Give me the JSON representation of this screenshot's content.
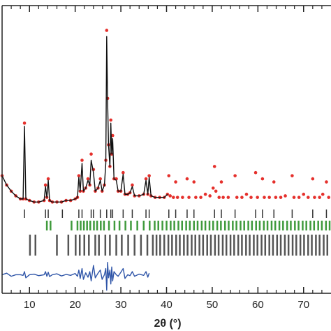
{
  "chart_data": {
    "type": "rietveld",
    "x_label": "2θ (°)",
    "xlim": [
      4,
      76
    ],
    "xticks": [
      10,
      20,
      30,
      40,
      50,
      60,
      70
    ],
    "xminorticks": [
      6,
      8,
      12,
      14,
      16,
      18,
      22,
      24,
      26,
      28,
      32,
      34,
      36,
      38,
      42,
      44,
      46,
      48,
      52,
      54,
      56,
      58,
      62,
      64,
      66,
      68,
      72,
      74
    ],
    "ylim": [
      7,
      100
    ],
    "x": [
      4,
      5,
      6,
      7,
      8,
      8.6,
      8.9,
      9.2,
      10,
      11,
      12,
      13.2,
      13.5,
      13.8,
      14.1,
      14.4,
      15,
      16,
      17,
      18,
      19,
      20,
      20.5,
      20.8,
      21.1,
      21.5,
      21.8,
      22.3,
      22.8,
      23.2,
      23.5,
      24.0,
      24.4,
      25.0,
      25.5,
      25.9,
      26.4,
      26.7,
      26.9,
      27.1,
      27.3,
      27.6,
      27.8,
      28.0,
      28.2,
      28.5,
      29.0,
      29.4,
      30.0,
      30.5,
      30.9,
      31.5,
      32.0,
      32.5,
      33.0,
      34.0,
      35.0,
      35.5,
      35.9,
      36.2,
      36.6,
      37.5,
      38.5,
      39.5,
      40.2,
      40.5,
      40.8,
      41.5,
      42.0,
      42.4,
      43.5,
      44.5,
      44.9,
      46.0,
      46.4,
      47.5,
      48.5,
      49.5,
      50.2,
      50.5,
      50.8,
      51.5,
      52.0,
      52.4,
      53.5,
      55.0,
      55.4,
      56.5,
      57.5,
      58.5,
      59.5,
      59.9,
      61.0,
      61.4,
      62.5,
      63.5,
      63.9,
      65.0,
      66.0,
      67.5,
      67.9,
      69.0,
      70.0,
      71.0,
      72.0,
      72.4,
      73.5,
      74.2,
      75.0,
      75.5
    ],
    "series": [
      {
        "style": "points",
        "color": "#e5302c",
        "values": [
          45,
          42,
          40,
          38.5,
          37.5,
          37.5,
          62,
          37.5,
          37,
          36.5,
          36.5,
          37,
          42,
          38,
          44,
          37,
          36.5,
          36.5,
          36.5,
          37,
          37,
          37.5,
          38,
          45,
          40,
          50,
          40,
          41,
          44,
          42,
          52,
          47,
          40,
          41,
          44,
          40,
          42,
          50,
          92,
          70,
          55,
          48,
          63,
          52,
          58,
          44,
          44,
          40,
          40,
          46,
          39,
          39,
          39.5,
          42,
          38.5,
          38.5,
          39,
          44,
          39,
          45,
          38.5,
          38,
          38,
          38,
          39,
          45,
          38.5,
          38,
          43,
          38,
          38,
          44,
          38,
          43,
          38,
          38,
          39,
          38.5,
          41,
          48,
          40,
          38,
          43,
          38,
          38,
          45,
          38,
          38,
          39,
          38,
          46,
          38,
          44,
          38,
          38,
          43,
          38,
          38,
          38.5,
          45,
          38,
          38,
          39,
          38,
          44,
          38,
          38,
          39,
          43,
          38
        ]
      },
      {
        "style": "line",
        "color": "#111111",
        "values": [
          45,
          42,
          40,
          38.5,
          37.5,
          37.5,
          61,
          37.5,
          37,
          36.5,
          36.5,
          37,
          41.5,
          38,
          43.5,
          37,
          36.5,
          36.5,
          36.5,
          37,
          37,
          37.5,
          38,
          44.5,
          40,
          49,
          40,
          41,
          43.5,
          42,
          50,
          46,
          40,
          41,
          43.5,
          40,
          42,
          49,
          90,
          69,
          55,
          48,
          62,
          52,
          57,
          44,
          43.5,
          40,
          40,
          45.5,
          39,
          39,
          39.5,
          41.5,
          38.5,
          38.5,
          39,
          43.5,
          39,
          44.5,
          38.5,
          38,
          38,
          38,
          39,
          null,
          null,
          null,
          null,
          null,
          null,
          null,
          null,
          null,
          null,
          null,
          null,
          null,
          null,
          null,
          null,
          null,
          null,
          null,
          null,
          null,
          null,
          null,
          null,
          null,
          null,
          null,
          null,
          null,
          null,
          null,
          null,
          null,
          null,
          null,
          null,
          null,
          null,
          null,
          null,
          null,
          null,
          null,
          null,
          null
        ]
      },
      {
        "style": "line",
        "color": "#2f55a8",
        "values": [
          13,
          13.5,
          12.5,
          13,
          13,
          12.8,
          14,
          12,
          13,
          13.2,
          12.7,
          13,
          14,
          12.5,
          13.8,
          12.4,
          13,
          13.3,
          12.6,
          13.1,
          12.8,
          13.4,
          12.5,
          14.5,
          11.8,
          15,
          11.5,
          13.6,
          12.2,
          14,
          11,
          16,
          12,
          13.5,
          14.5,
          11.5,
          13,
          15,
          8,
          17,
          12,
          14.5,
          10,
          15.5,
          11,
          14,
          13,
          12.5,
          13.8,
          15,
          11.8,
          13,
          12.7,
          14,
          12.5,
          13.2,
          12.8,
          14,
          12.2,
          13.5,
          null,
          null,
          null,
          null,
          null,
          null,
          null,
          null,
          null,
          null,
          null,
          null,
          null,
          null,
          null,
          null,
          null,
          null,
          null,
          null,
          null,
          null,
          null,
          null,
          null,
          null,
          null,
          null,
          null,
          null,
          null,
          null,
          null,
          null,
          null,
          null,
          null,
          null,
          null,
          null,
          null,
          null,
          null,
          null,
          null,
          null,
          null,
          null,
          null,
          null
        ]
      }
    ],
    "reflections": [
      {
        "color": "#333333",
        "positions": [
          8.9,
          13.5,
          14.1,
          17.2,
          20.8,
          21.5,
          23.5,
          24.0,
          25.5,
          26.9,
          27.8,
          28.2,
          30.5,
          32.5,
          35.5,
          36.2,
          40.5,
          42.0,
          44.5,
          46.0,
          50.5,
          52.0,
          55.0,
          59.5,
          61.0,
          63.5,
          67.5,
          72.0,
          75.0
        ]
      },
      {
        "color": "#3f9a3c",
        "positions": [
          13.8,
          14.6,
          19.2,
          20.5,
          21.2,
          21.9,
          22.6,
          23.3,
          24.1,
          24.8,
          25.6,
          26.3,
          27.4,
          28.6,
          29.7,
          31.0,
          32.2,
          33.6,
          35.0,
          36.3,
          37.4,
          38.2,
          39.1,
          40.0,
          40.9,
          41.7,
          42.6,
          43.4,
          44.3,
          45.1,
          46.0,
          46.8,
          47.7,
          48.5,
          49.4,
          50.2,
          51.1,
          51.9,
          52.8,
          53.6,
          54.5,
          55.3,
          56.2,
          57.0,
          57.9,
          58.7,
          59.6,
          60.4,
          61.3,
          62.1,
          63.0,
          63.8,
          64.7,
          65.5,
          66.4,
          67.2,
          68.1,
          68.9,
          69.8,
          70.6,
          71.5,
          72.3,
          73.2,
          74.0,
          74.9,
          75.7
        ]
      },
      {
        "color": "#555555",
        "positions": [
          10.1,
          11.3,
          16.0,
          18.5,
          20.1,
          21.0,
          22.0,
          23.0,
          24.4,
          25.2,
          26.6,
          27.6,
          29.0,
          30.2,
          31.6,
          33.0,
          34.4,
          35.8,
          37.0,
          37.8,
          38.6,
          39.5,
          40.4,
          41.2,
          42.1,
          42.9,
          43.8,
          44.6,
          45.5,
          46.3,
          47.2,
          48.0,
          48.9,
          49.7,
          50.6,
          51.4,
          52.3,
          53.1,
          54.0,
          54.8,
          55.7,
          56.5,
          57.4,
          58.2,
          59.1,
          59.9,
          60.8,
          61.6,
          62.5,
          63.3,
          64.2,
          65.0,
          65.9,
          66.7,
          67.6,
          68.4,
          69.3,
          70.1,
          71.0,
          71.8,
          72.7,
          73.5,
          74.4,
          75.2
        ]
      }
    ]
  }
}
